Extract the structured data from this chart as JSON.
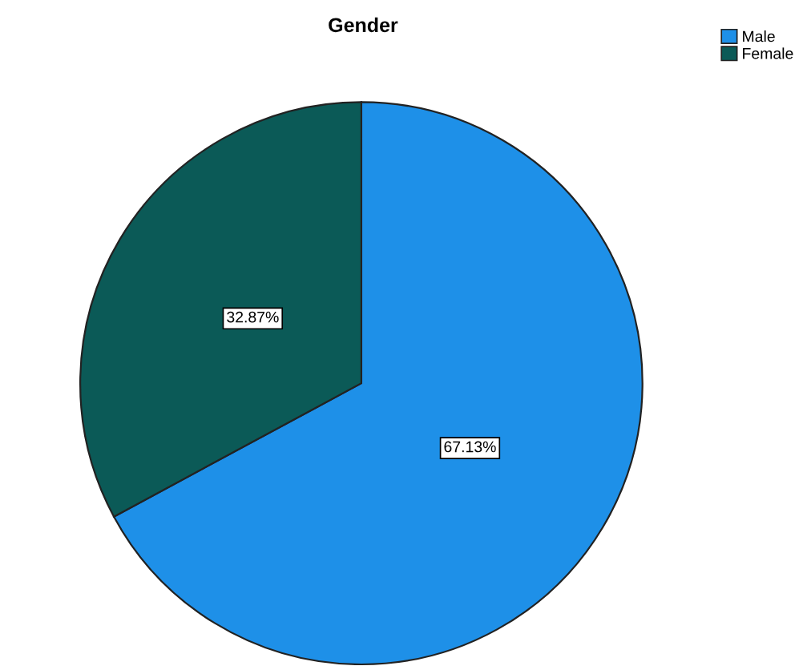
{
  "chart_data": {
    "type": "pie",
    "title": "Gender",
    "categories": [
      "Male",
      "Female"
    ],
    "values": [
      67.13,
      32.87
    ],
    "colors": [
      "#1e90e8",
      "#0b5a57"
    ],
    "value_labels": [
      "67.13%",
      "32.87%"
    ],
    "legend": "top right"
  }
}
